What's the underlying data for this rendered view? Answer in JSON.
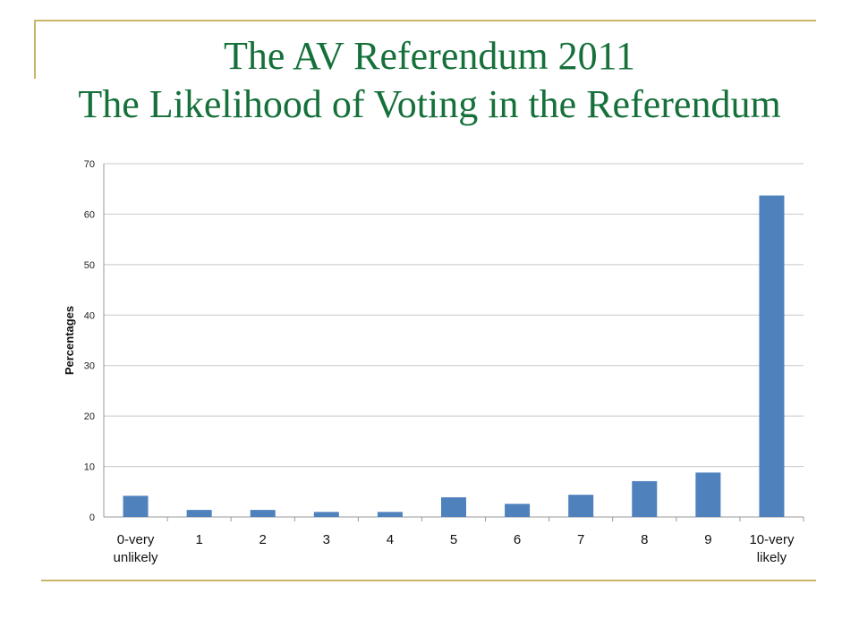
{
  "header": {
    "title_line1": "The AV Referendum 2011",
    "title_line2": "The Likelihood of Voting in the Referendum"
  },
  "colors": {
    "title": "#15703a",
    "bar": "#4f81bd",
    "accent_line": "#c9b56a",
    "grid": "#c8c8c8"
  },
  "chart_data": {
    "type": "bar",
    "categories": [
      [
        "0-very",
        "unlikely"
      ],
      [
        "1"
      ],
      [
        "2"
      ],
      [
        "3"
      ],
      [
        "4"
      ],
      [
        "5"
      ],
      [
        "6"
      ],
      [
        "7"
      ],
      [
        "8"
      ],
      [
        "9"
      ],
      [
        "10-very",
        "likely"
      ]
    ],
    "values": [
      4.2,
      1.4,
      1.4,
      1.0,
      1.0,
      3.9,
      2.6,
      4.4,
      7.1,
      8.8,
      63.7
    ],
    "title": "",
    "xlabel": "",
    "ylabel": "Percentages",
    "ylim": [
      0,
      70
    ],
    "yticks": [
      0,
      10,
      20,
      30,
      40,
      50,
      60,
      70
    ],
    "grid": true,
    "legend": "none"
  }
}
